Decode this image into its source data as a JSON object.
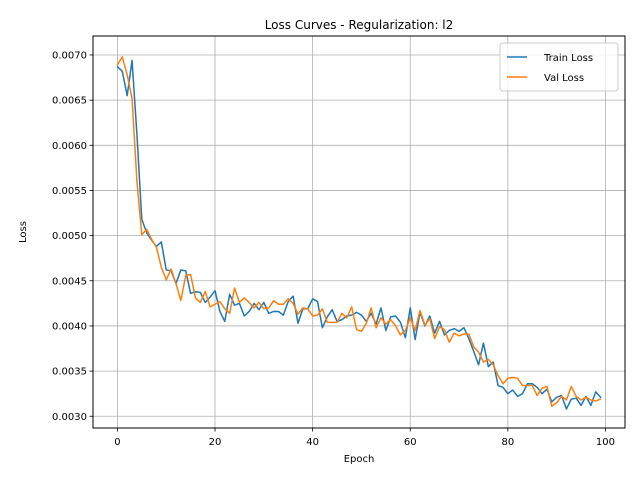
{
  "chart_data": {
    "type": "line",
    "title": "Loss Curves - Regularization: l2",
    "xlabel": "Epoch",
    "ylabel": "Loss",
    "xlim": [
      -5,
      104
    ],
    "ylim": [
      0.00287,
      0.00721
    ],
    "xticks": [
      0,
      20,
      40,
      60,
      80,
      100
    ],
    "yticks": [
      0.003,
      0.0035,
      0.004,
      0.0045,
      0.005,
      0.0055,
      0.006,
      0.0065,
      0.007
    ],
    "ytick_labels": [
      "0.0030",
      "0.0035",
      "0.0040",
      "0.0045",
      "0.0050",
      "0.0055",
      "0.0060",
      "0.0065",
      "0.0070"
    ],
    "grid": true,
    "legend_position": "top-right",
    "x": [
      0,
      1,
      2,
      3,
      4,
      5,
      6,
      7,
      8,
      9,
      10,
      11,
      12,
      13,
      14,
      15,
      16,
      17,
      18,
      19,
      20,
      21,
      22,
      23,
      24,
      25,
      26,
      27,
      28,
      29,
      30,
      31,
      32,
      33,
      34,
      35,
      36,
      37,
      38,
      39,
      40,
      41,
      42,
      43,
      44,
      45,
      46,
      47,
      48,
      49,
      50,
      51,
      52,
      53,
      54,
      55,
      56,
      57,
      58,
      59,
      60,
      61,
      62,
      63,
      64,
      65,
      66,
      67,
      68,
      69,
      70,
      71,
      72,
      73,
      74,
      75,
      76,
      77,
      78,
      79,
      80,
      81,
      82,
      83,
      84,
      85,
      86,
      87,
      88,
      89,
      90,
      91,
      92,
      93,
      94,
      95,
      96,
      97,
      98,
      99
    ],
    "series": [
      {
        "name": "Train Loss",
        "color": "#1f77b4",
        "values": [
          0.00687,
          0.00682,
          0.00655,
          0.00694,
          0.00612,
          0.00518,
          0.00503,
          0.00495,
          0.00488,
          0.00493,
          0.00462,
          0.00461,
          0.00447,
          0.00462,
          0.00461,
          0.00436,
          0.00438,
          0.00437,
          0.00426,
          0.00432,
          0.00439,
          0.00416,
          0.00405,
          0.00435,
          0.00423,
          0.00425,
          0.00411,
          0.00416,
          0.00425,
          0.00418,
          0.00426,
          0.00414,
          0.00416,
          0.00416,
          0.00412,
          0.00427,
          0.00433,
          0.00403,
          0.00419,
          0.00419,
          0.0043,
          0.00427,
          0.00398,
          0.0041,
          0.00418,
          0.00405,
          0.00407,
          0.00411,
          0.00412,
          0.00415,
          0.00412,
          0.00405,
          0.00414,
          0.00402,
          0.0042,
          0.00395,
          0.0041,
          0.00411,
          0.00404,
          0.00387,
          0.0042,
          0.00385,
          0.00415,
          0.004,
          0.00411,
          0.00392,
          0.00405,
          0.0039,
          0.00395,
          0.00397,
          0.00394,
          0.00398,
          0.00386,
          0.00372,
          0.00357,
          0.00381,
          0.00355,
          0.0036,
          0.00334,
          0.00332,
          0.00325,
          0.00329,
          0.00322,
          0.00325,
          0.00336,
          0.00336,
          0.00332,
          0.00325,
          0.0033,
          0.00316,
          0.00321,
          0.00323,
          0.00308,
          0.00319,
          0.0032,
          0.00312,
          0.00322,
          0.00312,
          0.00327,
          0.00321
        ]
      },
      {
        "name": "Val Loss",
        "color": "#ff7f0e",
        "values": [
          0.00689,
          0.00698,
          0.00678,
          0.00652,
          0.0056,
          0.00501,
          0.00507,
          0.00496,
          0.00487,
          0.00465,
          0.00451,
          0.00463,
          0.00447,
          0.00428,
          0.00456,
          0.00457,
          0.00431,
          0.00426,
          0.00438,
          0.00421,
          0.00424,
          0.00427,
          0.00419,
          0.00414,
          0.00442,
          0.00426,
          0.00431,
          0.00426,
          0.0042,
          0.00426,
          0.00419,
          0.0042,
          0.00428,
          0.00424,
          0.00424,
          0.0043,
          0.00425,
          0.00413,
          0.0042,
          0.00419,
          0.00411,
          0.00412,
          0.00419,
          0.00404,
          0.00404,
          0.00404,
          0.00414,
          0.00409,
          0.00421,
          0.00396,
          0.00394,
          0.00403,
          0.0042,
          0.00398,
          0.00409,
          0.00402,
          0.00407,
          0.004,
          0.0039,
          0.00395,
          0.00409,
          0.00395,
          0.00417,
          0.00401,
          0.00408,
          0.00386,
          0.00399,
          0.00396,
          0.00382,
          0.00392,
          0.00389,
          0.00391,
          0.00391,
          0.00377,
          0.00371,
          0.0036,
          0.00363,
          0.00357,
          0.00345,
          0.00336,
          0.00342,
          0.00343,
          0.00342,
          0.00334,
          0.00334,
          0.00334,
          0.00323,
          0.00331,
          0.00333,
          0.00311,
          0.00315,
          0.00322,
          0.00318,
          0.00333,
          0.00322,
          0.00318,
          0.00321,
          0.00318,
          0.00317,
          0.00319
        ]
      }
    ]
  }
}
